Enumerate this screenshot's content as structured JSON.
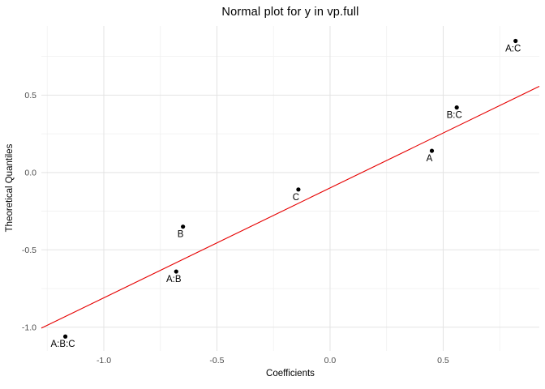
{
  "chart_data": {
    "type": "scatter",
    "title": "Normal plot for y in vp.full",
    "xlabel": "Coefficients",
    "ylabel": "Theoretical Quantiles",
    "xlim": [
      -1.276,
      0.925
    ],
    "ylim": [
      -1.153,
      0.947
    ],
    "x_ticks": [
      -1.0,
      -0.5,
      0.0,
      0.5
    ],
    "x_tick_labels": [
      "-1.0",
      "-0.5",
      "0.0",
      "0.5"
    ],
    "y_ticks": [
      0.5,
      0.0,
      -0.5,
      -1.0
    ],
    "y_tick_labels": [
      "0.5",
      "0.0",
      "-0.5",
      "-1.0"
    ],
    "minor_grid_step": 0.25,
    "grid": "major+minor",
    "legend": "none",
    "points": [
      {
        "label": "A:B:C",
        "x": -1.17,
        "y": -1.06
      },
      {
        "label": "A:B",
        "x": -0.68,
        "y": -0.64
      },
      {
        "label": "B",
        "x": -0.65,
        "y": -0.35
      },
      {
        "label": "C",
        "x": -0.14,
        "y": -0.11
      },
      {
        "label": "A",
        "x": 0.45,
        "y": 0.14
      },
      {
        "label": "B:C",
        "x": 0.56,
        "y": 0.42
      },
      {
        "label": "A:C",
        "x": 0.82,
        "y": 0.85
      }
    ],
    "reference_line": {
      "slope": 0.71,
      "intercept": -0.1,
      "color": "#E60000"
    },
    "colors": {
      "background": "#FFFFFF",
      "point": "#000000",
      "point_label": "#000000",
      "grid_major": "#E3E3E3",
      "grid_minor": "#F0F0F0",
      "tick_label": "#4D4D4D",
      "axis_title": "#000000",
      "title": "#000000"
    }
  }
}
